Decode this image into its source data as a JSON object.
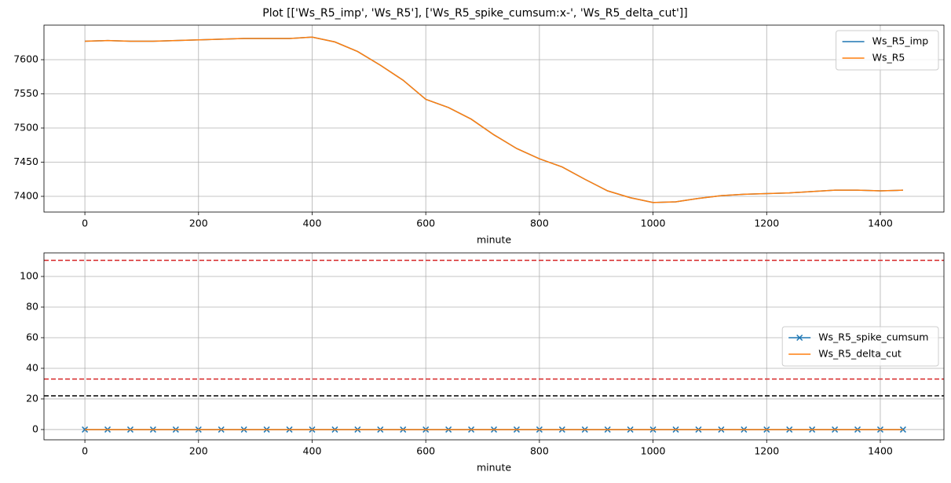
{
  "title": "Plot [['Ws_R5_imp', 'Ws_R5'], ['Ws_R5_spike_cumsum:x-', 'Ws_R5_delta_cut']]",
  "chart_data": [
    {
      "type": "line",
      "xlabel": "minute",
      "x": [
        0,
        40,
        80,
        120,
        160,
        200,
        240,
        280,
        320,
        360,
        400,
        440,
        480,
        520,
        560,
        600,
        640,
        680,
        720,
        760,
        800,
        840,
        880,
        920,
        960,
        1000,
        1040,
        1080,
        1120,
        1160,
        1200,
        1240,
        1280,
        1320,
        1360,
        1400,
        1440
      ],
      "series": [
        {
          "name": "Ws_R5_imp",
          "color": "#1f77b4",
          "values": [
            7627,
            7628,
            7627,
            7627,
            7628,
            7629,
            7630,
            7631,
            7631,
            7631,
            7633,
            7626,
            7612,
            7592,
            7570,
            7542,
            7530,
            7513,
            7490,
            7470,
            7455,
            7443,
            7425,
            7408,
            7398,
            7391,
            7392,
            7397,
            7401,
            7403,
            7404,
            7405,
            7407,
            7409,
            7409,
            7408,
            7409
          ]
        },
        {
          "name": "Ws_R5",
          "color": "#ff7f0e",
          "values": [
            7627,
            7628,
            7627,
            7627,
            7628,
            7629,
            7630,
            7631,
            7631,
            7631,
            7633,
            7626,
            7612,
            7592,
            7570,
            7542,
            7530,
            7513,
            7490,
            7470,
            7455,
            7443,
            7425,
            7408,
            7398,
            7391,
            7392,
            7397,
            7401,
            7403,
            7404,
            7405,
            7407,
            7409,
            7409,
            7408,
            7409
          ]
        }
      ],
      "xlim": [
        -72,
        1512
      ],
      "xticks": [
        0,
        200,
        400,
        600,
        800,
        1000,
        1200,
        1400
      ],
      "ylim": [
        7377,
        7650.6
      ],
      "yticks": [
        7400,
        7450,
        7500,
        7550,
        7600
      ],
      "grid": true,
      "legend_loc": "upper right"
    },
    {
      "type": "line",
      "xlabel": "minute",
      "x": [
        0,
        40,
        80,
        120,
        160,
        200,
        240,
        280,
        320,
        360,
        400,
        440,
        480,
        520,
        560,
        600,
        640,
        680,
        720,
        760,
        800,
        840,
        880,
        920,
        960,
        1000,
        1040,
        1080,
        1120,
        1160,
        1200,
        1240,
        1280,
        1320,
        1360,
        1400,
        1440
      ],
      "series": [
        {
          "name": "Ws_R5_spike_cumsum",
          "color": "#1f77b4",
          "marker": "x",
          "values": [
            0,
            0,
            0,
            0,
            0,
            0,
            0,
            0,
            0,
            0,
            0,
            0,
            0,
            0,
            0,
            0,
            0,
            0,
            0,
            0,
            0,
            0,
            0,
            0,
            0,
            0,
            0,
            0,
            0,
            0,
            0,
            0,
            0,
            0,
            0,
            0,
            0
          ]
        },
        {
          "name": "Ws_R5_delta_cut",
          "color": "#ff7f0e",
          "values": [
            0,
            0,
            0,
            0,
            0,
            0,
            0,
            0,
            0,
            0,
            0,
            0,
            0,
            0,
            0,
            0,
            0,
            0,
            0,
            0,
            0,
            0,
            0,
            0,
            0,
            0,
            0,
            0,
            0,
            0,
            0,
            0,
            0,
            0,
            0,
            0,
            0
          ]
        }
      ],
      "hlines": [
        {
          "value": 110.5,
          "color": "#d62728"
        },
        {
          "value": 33,
          "color": "#d62728"
        },
        {
          "value": 22,
          "color": "#000000"
        }
      ],
      "xlim": [
        -72,
        1512
      ],
      "xticks": [
        0,
        200,
        400,
        600,
        800,
        1000,
        1200,
        1400
      ],
      "ylim": [
        -6.7,
        115.4
      ],
      "yticks": [
        0,
        20,
        40,
        60,
        80,
        100
      ],
      "grid": true,
      "legend_loc": "center right"
    }
  ]
}
